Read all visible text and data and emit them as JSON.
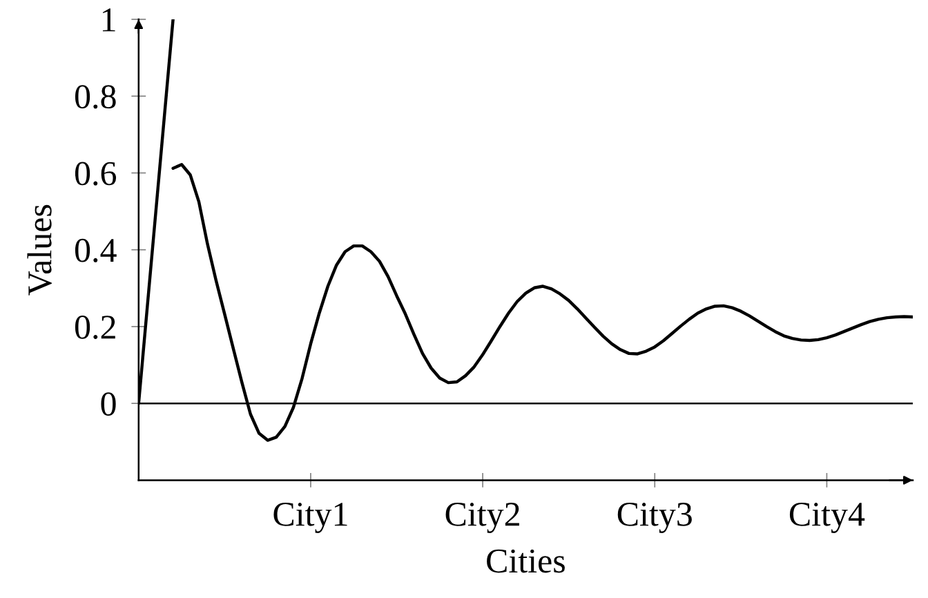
{
  "chart_data": {
    "type": "line",
    "xlabel": "Cities",
    "ylabel": "Values",
    "categories": [
      null,
      null,
      null,
      null,
      null,
      null,
      null,
      null,
      null,
      null,
      null,
      null,
      null,
      null,
      null,
      null,
      null,
      null,
      null,
      null,
      "City1",
      null,
      null,
      null,
      null,
      null,
      null,
      null,
      null,
      null,
      null,
      null,
      null,
      null,
      null,
      null,
      null,
      null,
      null,
      null,
      "City2",
      null,
      null,
      null,
      null,
      null,
      null,
      null,
      null,
      null,
      null,
      null,
      null,
      null,
      null,
      null,
      null,
      null,
      null,
      null,
      "City3",
      null,
      null,
      null,
      null,
      null,
      null,
      null,
      null,
      null,
      null,
      null,
      null,
      null,
      null,
      null,
      null,
      null,
      null,
      null,
      "City4",
      null,
      null,
      null,
      null,
      null,
      null,
      null,
      null,
      null,
      null
    ],
    "series": [
      {
        "color": "#000000",
        "values": [
          0,
          0.25,
          0.5,
          0.75,
          1,
          null,
          null,
          null,
          null,
          null,
          null,
          null,
          null,
          null,
          null,
          null,
          null,
          null,
          null,
          null,
          null,
          null,
          null,
          null,
          null,
          null,
          null,
          null,
          null,
          null,
          null,
          null,
          null,
          null,
          null,
          null,
          null,
          null,
          null,
          null,
          null,
          null,
          null,
          null,
          null,
          null,
          null,
          null,
          null,
          null,
          null,
          null,
          null,
          null,
          null,
          null,
          null,
          null,
          null,
          null,
          null,
          null,
          null,
          null,
          null,
          null,
          null,
          null,
          null,
          null,
          null,
          null,
          null,
          null,
          null,
          null,
          null,
          null,
          null,
          null,
          null,
          null,
          null,
          null,
          null,
          null,
          null,
          null,
          null,
          null,
          null
        ]
      },
      {
        "color": "#000000",
        "values": [
          null,
          null,
          null,
          null,
          0.612,
          0.622,
          0.595,
          0.525,
          0.415,
          0.32,
          0.232,
          0.143,
          0.055,
          -0.028,
          -0.078,
          -0.096,
          -0.088,
          -0.06,
          -0.01,
          0.065,
          0.155,
          0.235,
          0.305,
          0.36,
          0.395,
          0.41,
          0.41,
          0.395,
          0.37,
          0.33,
          0.28,
          0.233,
          0.18,
          0.13,
          0.092,
          0.066,
          0.054,
          0.056,
          0.072,
          0.095,
          0.127,
          0.163,
          0.2,
          0.235,
          0.265,
          0.287,
          0.301,
          0.305,
          0.298,
          0.285,
          0.268,
          0.246,
          0.222,
          0.198,
          0.175,
          0.155,
          0.14,
          0.13,
          0.129,
          0.136,
          0.147,
          0.163,
          0.182,
          0.201,
          0.219,
          0.235,
          0.246,
          0.253,
          0.254,
          0.249,
          0.24,
          0.228,
          0.214,
          0.2,
          0.187,
          0.176,
          0.169,
          0.165,
          0.164,
          0.166,
          0.171,
          0.178,
          0.187,
          0.196,
          0.205,
          0.213,
          0.219,
          0.223,
          0.225,
          0.226,
          0.225
        ]
      }
    ],
    "ylim": [
      -0.2,
      1
    ],
    "yticks": [
      0,
      0.2,
      0.4,
      0.6,
      0.8,
      1
    ],
    "ref_lines": [
      {
        "axis": "y",
        "value": 0,
        "color": "#000000"
      }
    ],
    "marker": "none",
    "line_style": "solid"
  }
}
